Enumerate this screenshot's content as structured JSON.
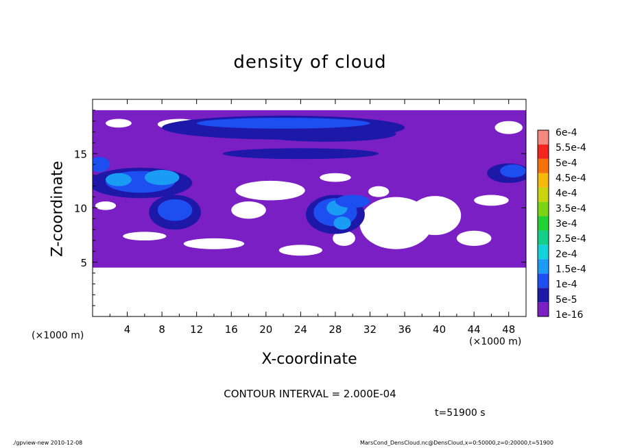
{
  "chart_data": {
    "type": "heatmap",
    "title": "density of cloud",
    "xlabel": "X-coordinate",
    "ylabel": "Z-coordinate",
    "x_unit_label": "(×1000 m)",
    "y_unit_label": "(×1000 m)",
    "xlim": [
      0,
      50
    ],
    "ylim": [
      0,
      20
    ],
    "x_ticks": [
      4,
      8,
      12,
      16,
      20,
      24,
      28,
      32,
      36,
      40,
      44,
      48
    ],
    "x_tick_labels": [
      "4",
      "8",
      "12",
      "16",
      "20",
      "24",
      "28",
      "32",
      "36",
      "40",
      "44",
      "48"
    ],
    "y_ticks": [
      5,
      10,
      15
    ],
    "y_tick_labels": [
      "5",
      "10",
      "15"
    ],
    "cloud_layer_z_range": [
      4.5,
      19
    ],
    "colorbar": {
      "levels": [
        "1e-16",
        "5e-5",
        "1e-4",
        "1.5e-4",
        "2e-4",
        "2.5e-4",
        "3e-4",
        "3.5e-4",
        "4e-4",
        "4.5e-4",
        "5e-4",
        "5.5e-4",
        "6e-4"
      ],
      "colors": [
        "#7a1fc4",
        "#1e18a8",
        "#1d4ff0",
        "#1a9cf5",
        "#14d2dc",
        "#14cf8a",
        "#22d232",
        "#7bd414",
        "#c9d40f",
        "#f5b90c",
        "#f5720a",
        "#f2261c",
        "#f4887c"
      ]
    },
    "contour_interval": "CONTOUR INTERVAL = 2.000E-04",
    "time_label": "t=51900 s",
    "colors": {
      "background": "#ffffff",
      "base": "#7a1fc4",
      "low": "#1e18a8",
      "mid": "#1d4ff0",
      "high": "#1a9cf5"
    }
  },
  "footer": {
    "left": "./gpview-new  2010-12-08",
    "right": "MarsCond_DensCloud.nc@DensCloud,x=0:50000,z=0:20000,t=51900"
  }
}
